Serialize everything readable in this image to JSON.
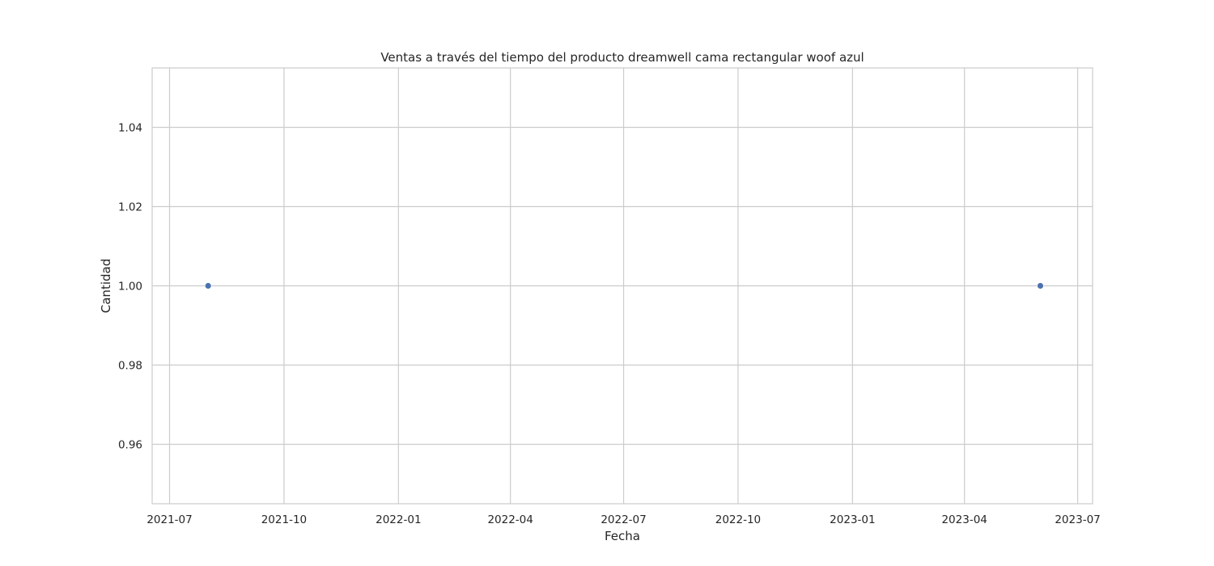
{
  "chart_data": {
    "type": "scatter",
    "title": "Ventas a través del tiempo del producto dreamwell cama rectangular woof azul",
    "xlabel": "Fecha",
    "ylabel": "Cantidad",
    "x_scale": "date",
    "xlim": [
      "2021-06-17",
      "2023-07-13"
    ],
    "ylim": [
      0.945,
      1.055
    ],
    "x_ticks": [
      "2021-07",
      "2021-10",
      "2022-01",
      "2022-04",
      "2022-07",
      "2022-10",
      "2023-01",
      "2023-04",
      "2023-07"
    ],
    "y_ticks": [
      "0.96",
      "0.98",
      "1.00",
      "1.02",
      "1.04"
    ],
    "grid": true,
    "legend": "none",
    "marker_color": "#4c72b0",
    "points": [
      {
        "x": "2021-08-01",
        "y": 1.0
      },
      {
        "x": "2023-06-01",
        "y": 1.0
      }
    ]
  }
}
